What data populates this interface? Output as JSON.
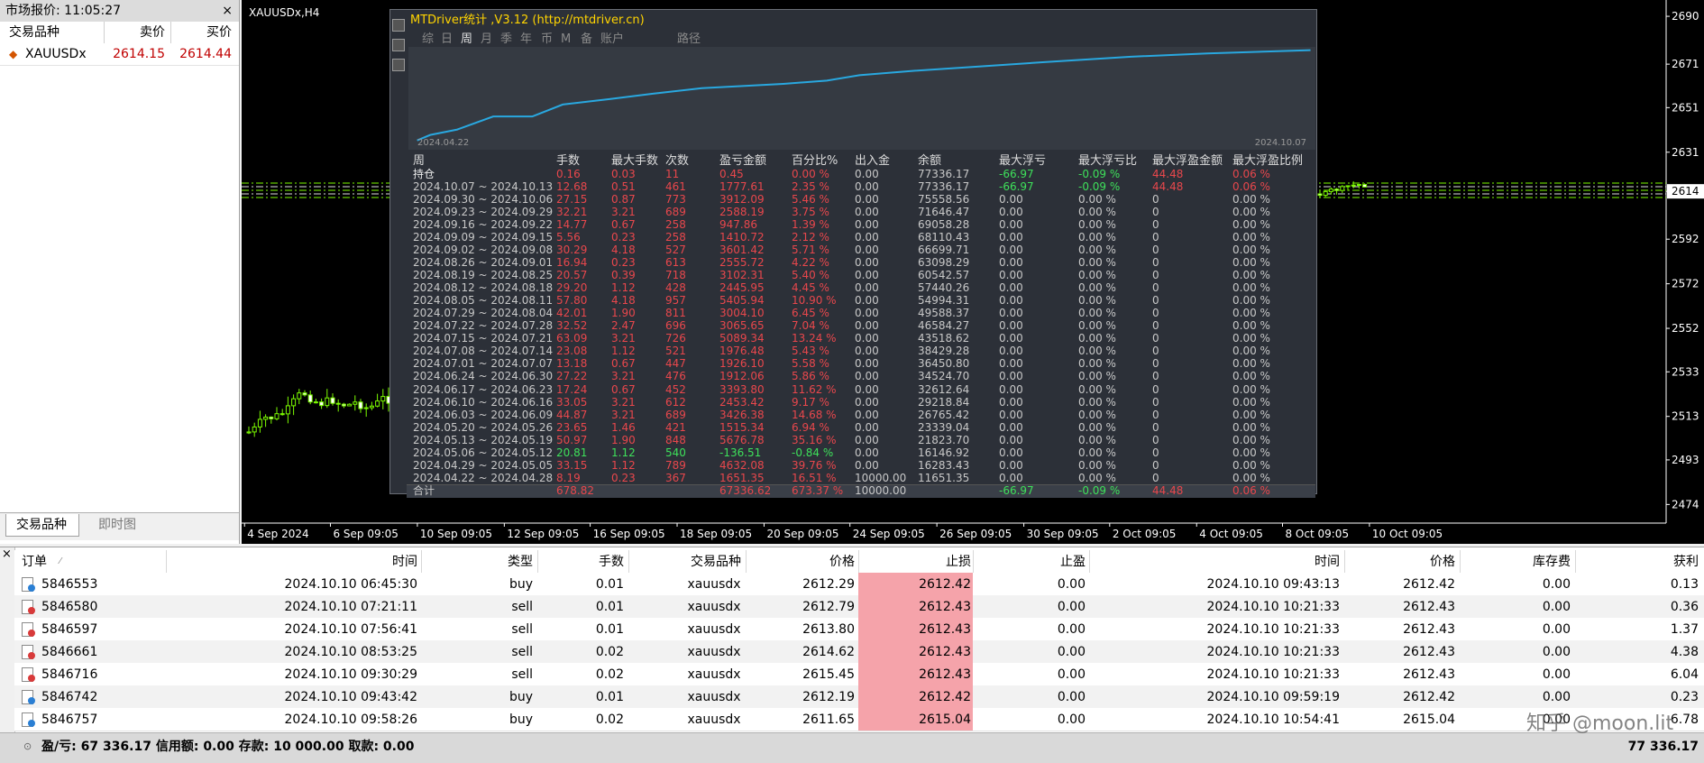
{
  "market_watch": {
    "title": "市场报价: 11:05:27",
    "headers": [
      "交易品种",
      "卖价",
      "买价"
    ],
    "rows": [
      [
        "XAUUSDx",
        "2614.15",
        "2614.44"
      ]
    ],
    "tabs": [
      "交易品种",
      "即时图"
    ]
  },
  "chart": {
    "title": "XAUUSDx,H4",
    "price_labels": [
      "2690",
      "2671",
      "2651",
      "2631",
      "2614",
      "2592",
      "2572",
      "2552",
      "2533",
      "2513",
      "2493",
      "2474"
    ],
    "time_labels": [
      "4 Sep 2024",
      "6 Sep 09:05",
      "10 Sep 09:05",
      "12 Sep 09:05",
      "16 Sep 09:05",
      "18 Sep 09:05",
      "20 Sep 09:05",
      "24 Sep 09:05",
      "26 Sep 09:05",
      "30 Sep 09:05",
      "2 Oct 09:05",
      "4 Oct 09:05",
      "8 Oct 09:05",
      "10 Oct 09:05"
    ]
  },
  "mtdriver": {
    "title": "MTDriver统计 ,V3.12 (http://mtdriver.cn)",
    "tabs": [
      "综",
      "日",
      "周",
      "月",
      "季",
      "年",
      "币",
      "M",
      "备",
      "账户",
      "路径"
    ],
    "curve_start": "2024.04.22",
    "curve_end": "2024.10.07",
    "headers": [
      "周",
      "手数",
      "最大手数",
      "次数",
      "盈亏金额",
      "百分比%",
      "出入金",
      "余额",
      "最大浮亏",
      "最大浮亏比",
      "最大浮盈金额",
      "最大浮盈比例"
    ],
    "rows": [
      [
        "持仓",
        "0.16",
        "0.03",
        "11",
        "0.45",
        "0.00 %",
        "0.00",
        "77336.17",
        "-66.97",
        "-0.09 %",
        "44.48",
        "0.06 %"
      ],
      [
        "2024.10.07 ~ 2024.10.13",
        "12.68",
        "0.51",
        "461",
        "1777.61",
        "2.35 %",
        "0.00",
        "77336.17",
        "-66.97",
        "-0.09 %",
        "44.48",
        "0.06 %"
      ],
      [
        "2024.09.30 ~ 2024.10.06",
        "27.15",
        "0.87",
        "773",
        "3912.09",
        "5.46 %",
        "0.00",
        "75558.56",
        "0.00",
        "0.00 %",
        "0",
        "0.00 %"
      ],
      [
        "2024.09.23 ~ 2024.09.29",
        "32.21",
        "3.21",
        "689",
        "2588.19",
        "3.75 %",
        "0.00",
        "71646.47",
        "0.00",
        "0.00 %",
        "0",
        "0.00 %"
      ],
      [
        "2024.09.16 ~ 2024.09.22",
        "14.77",
        "0.67",
        "258",
        "947.86",
        "1.39 %",
        "0.00",
        "69058.28",
        "0.00",
        "0.00 %",
        "0",
        "0.00 %"
      ],
      [
        "2024.09.09 ~ 2024.09.15",
        "5.56",
        "0.23",
        "258",
        "1410.72",
        "2.12 %",
        "0.00",
        "68110.43",
        "0.00",
        "0.00 %",
        "0",
        "0.00 %"
      ],
      [
        "2024.09.02 ~ 2024.09.08",
        "30.29",
        "4.18",
        "527",
        "3601.42",
        "5.71 %",
        "0.00",
        "66699.71",
        "0.00",
        "0.00 %",
        "0",
        "0.00 %"
      ],
      [
        "2024.08.26 ~ 2024.09.01",
        "16.94",
        "0.23",
        "613",
        "2555.72",
        "4.22 %",
        "0.00",
        "63098.29",
        "0.00",
        "0.00 %",
        "0",
        "0.00 %"
      ],
      [
        "2024.08.19 ~ 2024.08.25",
        "20.57",
        "0.39",
        "718",
        "3102.31",
        "5.40 %",
        "0.00",
        "60542.57",
        "0.00",
        "0.00 %",
        "0",
        "0.00 %"
      ],
      [
        "2024.08.12 ~ 2024.08.18",
        "29.20",
        "1.12",
        "428",
        "2445.95",
        "4.45 %",
        "0.00",
        "57440.26",
        "0.00",
        "0.00 %",
        "0",
        "0.00 %"
      ],
      [
        "2024.08.05 ~ 2024.08.11",
        "57.80",
        "4.18",
        "957",
        "5405.94",
        "10.90 %",
        "0.00",
        "54994.31",
        "0.00",
        "0.00 %",
        "0",
        "0.00 %"
      ],
      [
        "2024.07.29 ~ 2024.08.04",
        "42.01",
        "1.90",
        "811",
        "3004.10",
        "6.45 %",
        "0.00",
        "49588.37",
        "0.00",
        "0.00 %",
        "0",
        "0.00 %"
      ],
      [
        "2024.07.22 ~ 2024.07.28",
        "32.52",
        "2.47",
        "696",
        "3065.65",
        "7.04 %",
        "0.00",
        "46584.27",
        "0.00",
        "0.00 %",
        "0",
        "0.00 %"
      ],
      [
        "2024.07.15 ~ 2024.07.21",
        "63.09",
        "3.21",
        "726",
        "5089.34",
        "13.24 %",
        "0.00",
        "43518.62",
        "0.00",
        "0.00 %",
        "0",
        "0.00 %"
      ],
      [
        "2024.07.08 ~ 2024.07.14",
        "23.08",
        "1.12",
        "521",
        "1976.48",
        "5.43 %",
        "0.00",
        "38429.28",
        "0.00",
        "0.00 %",
        "0",
        "0.00 %"
      ],
      [
        "2024.07.01 ~ 2024.07.07",
        "13.18",
        "0.67",
        "447",
        "1926.10",
        "5.58 %",
        "0.00",
        "36450.80",
        "0.00",
        "0.00 %",
        "0",
        "0.00 %"
      ],
      [
        "2024.06.24 ~ 2024.06.30",
        "27.22",
        "3.21",
        "476",
        "1912.06",
        "5.86 %",
        "0.00",
        "34524.70",
        "0.00",
        "0.00 %",
        "0",
        "0.00 %"
      ],
      [
        "2024.06.17 ~ 2024.06.23",
        "17.24",
        "0.67",
        "452",
        "3393.80",
        "11.62 %",
        "0.00",
        "32612.64",
        "0.00",
        "0.00 %",
        "0",
        "0.00 %"
      ],
      [
        "2024.06.10 ~ 2024.06.16",
        "33.05",
        "3.21",
        "612",
        "2453.42",
        "9.17 %",
        "0.00",
        "29218.84",
        "0.00",
        "0.00 %",
        "0",
        "0.00 %"
      ],
      [
        "2024.06.03 ~ 2024.06.09",
        "44.87",
        "3.21",
        "689",
        "3426.38",
        "14.68 %",
        "0.00",
        "26765.42",
        "0.00",
        "0.00 %",
        "0",
        "0.00 %"
      ],
      [
        "2024.05.20 ~ 2024.05.26",
        "23.65",
        "1.46",
        "421",
        "1515.34",
        "6.94 %",
        "0.00",
        "23339.04",
        "0.00",
        "0.00 %",
        "0",
        "0.00 %"
      ],
      [
        "2024.05.13 ~ 2024.05.19",
        "50.97",
        "1.90",
        "848",
        "5676.78",
        "35.16 %",
        "0.00",
        "21823.70",
        "0.00",
        "0.00 %",
        "0",
        "0.00 %"
      ],
      [
        "2024.05.06 ~ 2024.05.12",
        "20.81",
        "1.12",
        "540",
        "-136.51",
        "-0.84 %",
        "0.00",
        "16146.92",
        "0.00",
        "0.00 %",
        "0",
        "0.00 %"
      ],
      [
        "2024.04.29 ~ 2024.05.05",
        "33.15",
        "1.12",
        "789",
        "4632.08",
        "39.76 %",
        "0.00",
        "16283.43",
        "0.00",
        "0.00 %",
        "0",
        "0.00 %"
      ],
      [
        "2024.04.22 ~ 2024.04.28",
        "8.19",
        "0.23",
        "367",
        "1651.35",
        "16.51 %",
        "10000.00",
        "11651.35",
        "0.00",
        "0.00 %",
        "0",
        "0.00 %"
      ]
    ],
    "total": {
      "周": "合计",
      "手数": "678.82",
      "盈亏金额": "67336.62",
      "百分比%": "673.37 %",
      "出入金": "10000.00",
      "最大浮亏": "-66.97",
      "最大浮亏比": "-0.09 %",
      "最大浮盈金额": "44.48",
      "最大浮盈比例": "0.06 %"
    }
  },
  "orders": {
    "headers": [
      "订单",
      "时间",
      "类型",
      "手数",
      "交易品种",
      "价格",
      "止损",
      "止盈",
      "时间",
      "价格",
      "库存费",
      "获利"
    ],
    "rows": [
      [
        "5846553",
        "2024.10.10 06:45:30",
        "buy",
        "0.01",
        "xauusdx",
        "2612.29",
        "2612.42",
        "0.00",
        "2024.10.10 09:43:13",
        "2612.42",
        "0.00",
        "0.13"
      ],
      [
        "5846580",
        "2024.10.10 07:21:11",
        "sell",
        "0.01",
        "xauusdx",
        "2612.79",
        "2612.43",
        "0.00",
        "2024.10.10 10:21:33",
        "2612.43",
        "0.00",
        "0.36"
      ],
      [
        "5846597",
        "2024.10.10 07:56:41",
        "sell",
        "0.01",
        "xauusdx",
        "2613.80",
        "2612.43",
        "0.00",
        "2024.10.10 10:21:33",
        "2612.43",
        "0.00",
        "1.37"
      ],
      [
        "5846661",
        "2024.10.10 08:53:25",
        "sell",
        "0.02",
        "xauusdx",
        "2614.62",
        "2612.43",
        "0.00",
        "2024.10.10 10:21:33",
        "2612.43",
        "0.00",
        "4.38"
      ],
      [
        "5846716",
        "2024.10.10 09:30:29",
        "sell",
        "0.02",
        "xauusdx",
        "2615.45",
        "2612.43",
        "0.00",
        "2024.10.10 10:21:33",
        "2612.43",
        "0.00",
        "6.04"
      ],
      [
        "5846742",
        "2024.10.10 09:43:42",
        "buy",
        "0.01",
        "xauusdx",
        "2612.19",
        "2612.42",
        "0.00",
        "2024.10.10 09:59:19",
        "2612.42",
        "0.00",
        "0.23"
      ],
      [
        "5846757",
        "2024.10.10 09:58:26",
        "buy",
        "0.02",
        "xauusdx",
        "2611.65",
        "2615.04",
        "0.00",
        "2024.10.10 10:54:41",
        "2615.04",
        "0.00",
        "6.78"
      ]
    ],
    "summary": "盈/亏: 67 336.17 信用额: 0.00 存款: 10 000.00 取款: 0.00",
    "total": "77 336.17"
  },
  "watermark": "知乎 @moon.lit"
}
